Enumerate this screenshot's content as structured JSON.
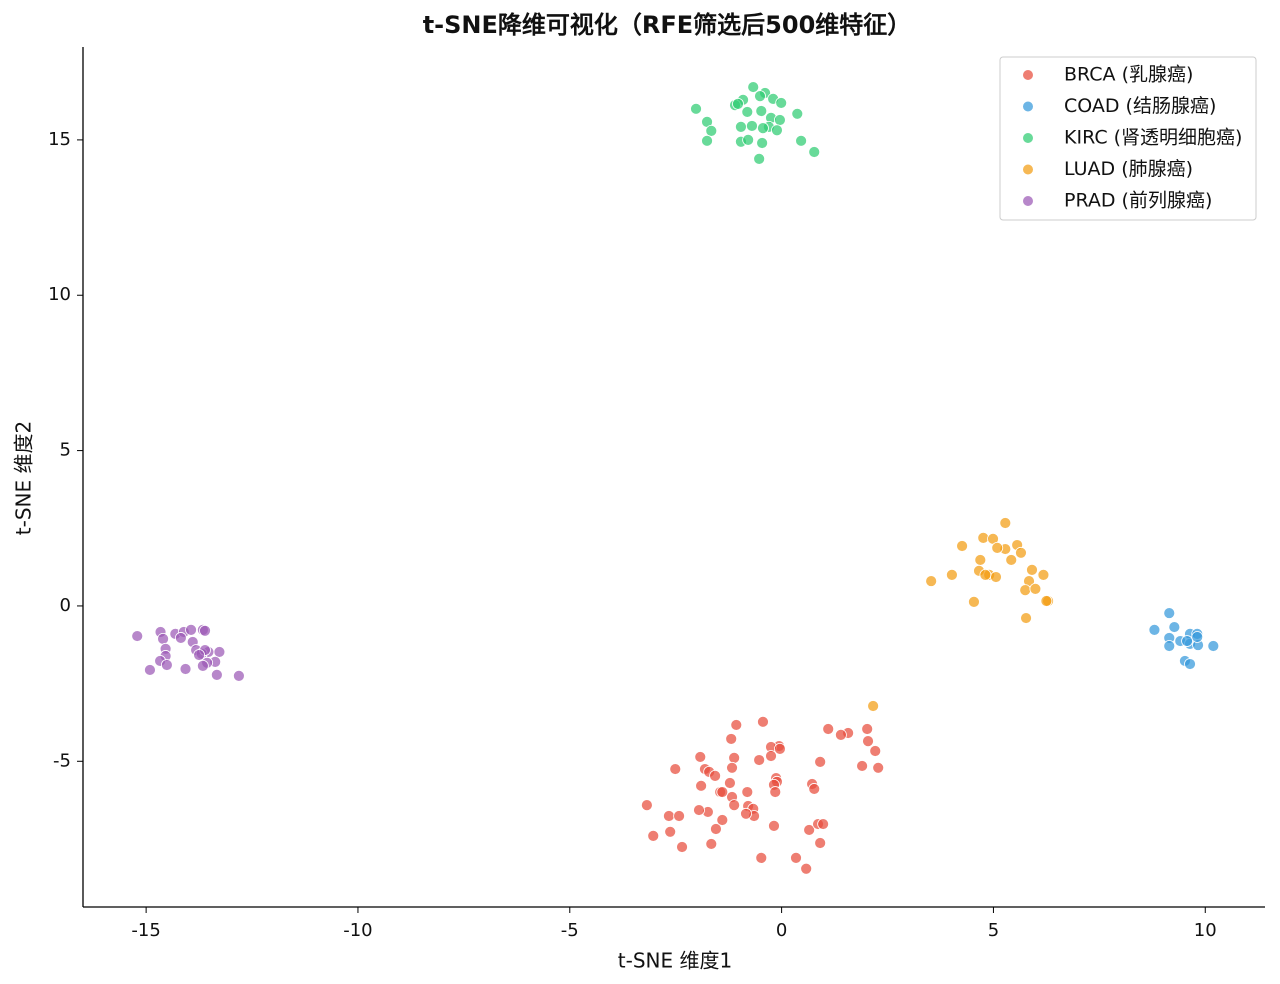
{
  "chart_data": {
    "type": "scatter",
    "title": "t-SNE降维可视化（RFE筛选后500维特征）",
    "xlabel": "t-SNE 维度1",
    "ylabel": "t-SNE 维度2",
    "xlim": [
      -16.49,
      11.41
    ],
    "ylim": [
      -9.69,
      17.99
    ],
    "xticks": [
      -15,
      -10,
      -5,
      0,
      5,
      10
    ],
    "yticks": [
      -5,
      0,
      5,
      10,
      15
    ],
    "grid": false,
    "legend": "upper right",
    "series": [
      {
        "name": "BRCA (乳腺癌)",
        "color": "#e74c3c",
        "x": [
          -0.44,
          -1.07,
          -1.19,
          1.1,
          2.02,
          1.57,
          1.4,
          2.04,
          -0.06,
          -0.25,
          -0.04,
          2.21,
          -0.25,
          -1.92,
          -1.12,
          -0.53,
          0.91,
          1.9,
          2.28,
          -2.51,
          -1.81,
          -1.71,
          -1.17,
          -1.57,
          -0.13,
          -0.11,
          0.72,
          -1.9,
          -1.22,
          -0.18,
          -1.45,
          -0.81,
          0.77,
          -0.15,
          -1.17,
          -1.4,
          -0.79,
          -0.67,
          -1.12,
          -3.18,
          -2.66,
          -1.74,
          -0.65,
          -2.42,
          -1.4,
          -0.18,
          0.65,
          0.86,
          0.98,
          -1.55,
          -2.63,
          -3.03,
          0.91,
          -2.35,
          -1.66,
          0.34,
          -0.48,
          0.58,
          -0.84,
          -1.95
        ],
        "values": [
          -3.73,
          -3.83,
          -4.28,
          -3.96,
          -3.96,
          -4.09,
          -4.15,
          -4.35,
          -4.51,
          -4.54,
          -4.6,
          -4.67,
          -4.83,
          -4.86,
          -4.89,
          -4.96,
          -5.02,
          -5.15,
          -5.21,
          -5.25,
          -5.25,
          -5.34,
          -5.21,
          -5.47,
          -5.54,
          -5.66,
          -5.73,
          -5.79,
          -5.7,
          -5.76,
          -5.99,
          -5.99,
          -5.89,
          -5.99,
          -6.15,
          -5.99,
          -6.44,
          -6.53,
          -6.41,
          -6.41,
          -6.76,
          -6.63,
          -6.76,
          -6.76,
          -6.89,
          -7.08,
          -7.21,
          -7.02,
          -7.02,
          -7.18,
          -7.27,
          -7.4,
          -7.63,
          -7.76,
          -7.66,
          -8.11,
          -8.11,
          -8.46,
          -6.69,
          -6.57
        ]
      },
      {
        "name": "COAD (结肠腺癌)",
        "color": "#3498db",
        "x": [
          9.15,
          8.8,
          9.27,
          9.64,
          9.81,
          9.41,
          9.64,
          9.15,
          9.83,
          9.15,
          10.19,
          9.52,
          9.64,
          9.81,
          9.57
        ],
        "values": [
          -0.23,
          -0.77,
          -0.68,
          -0.9,
          -0.9,
          -1.13,
          -1.22,
          -1.03,
          -1.26,
          -1.29,
          -1.29,
          -1.77,
          -1.87,
          -1.0,
          -1.13
        ]
      },
      {
        "name": "KIRC (肾透明细胞癌)",
        "color": "#2ecc71",
        "x": [
          -2.02,
          -0.67,
          -0.39,
          -0.51,
          -0.91,
          -0.2,
          -0.01,
          -1.1,
          -0.81,
          -0.48,
          0.37,
          -0.25,
          -0.04,
          -1.76,
          -0.96,
          -0.7,
          -0.3,
          -0.44,
          -0.11,
          -1.66,
          0.46,
          -1.76,
          -0.96,
          -0.46,
          0.77,
          -0.53,
          -1.03,
          -0.79
        ],
        "values": [
          16.0,
          16.7,
          16.51,
          16.41,
          16.29,
          16.32,
          16.19,
          16.12,
          15.9,
          15.93,
          15.84,
          15.71,
          15.64,
          15.58,
          15.42,
          15.45,
          15.42,
          15.38,
          15.31,
          15.29,
          14.97,
          14.97,
          14.94,
          14.9,
          14.61,
          14.39,
          16.16,
          15.0
        ]
      },
      {
        "name": "LUAD (肺腺癌)",
        "color": "#f39c12",
        "x": [
          5.28,
          4.76,
          4.99,
          4.26,
          5.56,
          5.28,
          5.65,
          5.42,
          4.69,
          5.91,
          4.66,
          4.02,
          4.9,
          5.06,
          6.18,
          3.53,
          5.84,
          5.75,
          5.99,
          4.54,
          6.29,
          5.77,
          2.16,
          5.09,
          4.81,
          6.25
        ],
        "values": [
          2.67,
          2.19,
          2.16,
          1.93,
          1.96,
          1.83,
          1.71,
          1.48,
          1.48,
          1.16,
          1.13,
          1.0,
          1.0,
          0.93,
          1.0,
          0.8,
          0.8,
          0.51,
          0.55,
          0.13,
          0.16,
          -0.39,
          -3.22,
          1.87,
          1.0,
          0.16
        ]
      },
      {
        "name": "PRAD (前列腺癌)",
        "color": "#9b59b6",
        "x": [
          -15.21,
          -14.66,
          -14.31,
          -14.6,
          -14.11,
          -13.94,
          -13.66,
          -13.61,
          -14.18,
          -13.9,
          -14.54,
          -13.82,
          -13.27,
          -13.53,
          -13.69,
          -14.54,
          -14.67,
          -13.37,
          -13.56,
          -13.66,
          -14.51,
          -14.91,
          -14.07,
          -13.33,
          -12.81,
          -13.61,
          -13.75
        ],
        "values": [
          -0.97,
          -0.84,
          -0.9,
          -1.06,
          -0.84,
          -0.77,
          -0.77,
          -0.8,
          -1.03,
          -1.16,
          -1.38,
          -1.42,
          -1.48,
          -1.48,
          -1.54,
          -1.61,
          -1.77,
          -1.8,
          -1.83,
          -1.93,
          -1.9,
          -2.06,
          -2.03,
          -2.22,
          -2.25,
          -1.42,
          -1.58
        ]
      }
    ]
  }
}
